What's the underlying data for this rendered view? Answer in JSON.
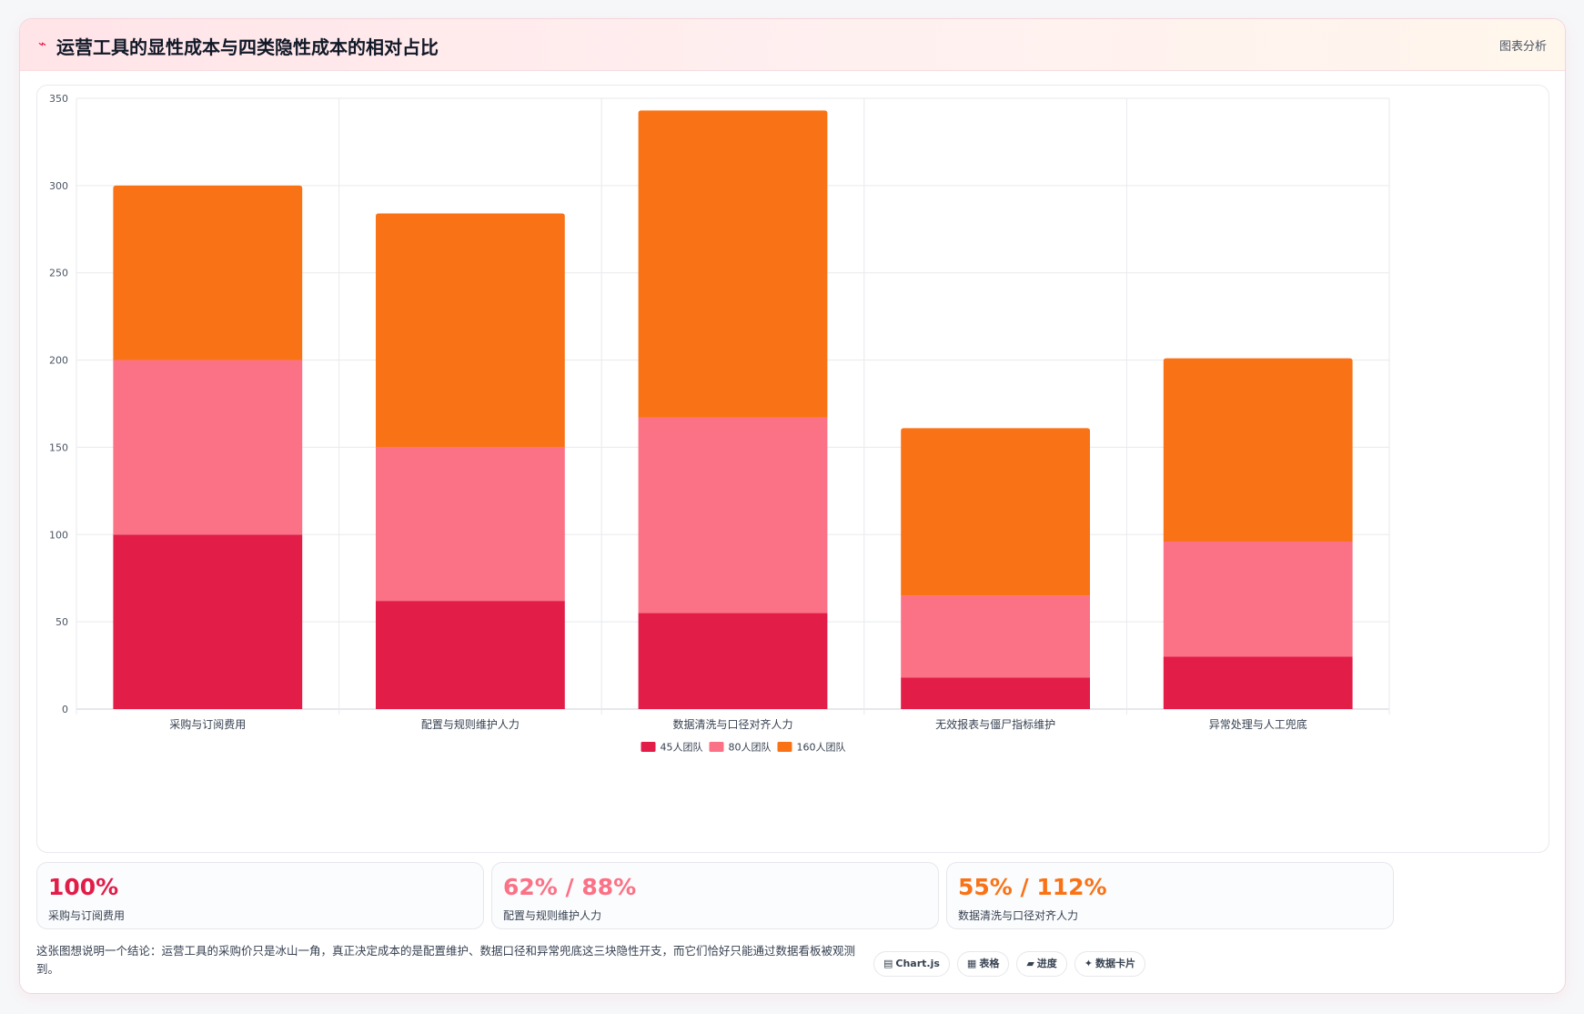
{
  "header": {
    "icon": "trend-line-icon",
    "title": "运营工具的显性成本与四类隐性成本的相对占比",
    "action_label": "图表分析"
  },
  "colors": {
    "series_45": "#e11d48",
    "series_80": "#fb7185",
    "series_160": "#f97316"
  },
  "chart_data": {
    "type": "bar",
    "stacked": true,
    "categories": [
      "采购与订阅费用",
      "配置与规则维护人力",
      "数据清洗与口径对齐人力",
      "无效报表与僵尸指标维护",
      "异常处理与人工兜底"
    ],
    "series": [
      {
        "name": "45人团队",
        "color": "#e11d48",
        "values": [
          100,
          62,
          55,
          18,
          30
        ]
      },
      {
        "name": "80人团队",
        "color": "#fb7185",
        "values": [
          100,
          88,
          112,
          47,
          66
        ]
      },
      {
        "name": "160人团队",
        "color": "#f97316",
        "values": [
          100,
          134,
          176,
          96,
          105
        ]
      }
    ],
    "ylim": [
      0,
      350
    ],
    "yticks": [
      0,
      50,
      100,
      150,
      200,
      250,
      300,
      350
    ],
    "grid": true,
    "legend": "bottom"
  },
  "stats": [
    {
      "value": "100%",
      "label": "采购与订阅费用",
      "color": "#e11d48"
    },
    {
      "value": "62% / 88%",
      "label": "配置与规则维护人力",
      "color": "#fb7185"
    },
    {
      "value": "55% / 112%",
      "label": "数据清洗与口径对齐人力",
      "color": "#f97316"
    }
  ],
  "conclusion": "这张图想说明一个结论：运营工具的采购价只是冰山一角，真正决定成本的是配置维护、数据口径和异常兜底这三块隐性开支，而它们恰好只能通过数据看板被观测到。",
  "chips": [
    {
      "icon": "▤",
      "label": "Chart.js"
    },
    {
      "icon": "▦",
      "label": "表格"
    },
    {
      "icon": "▰",
      "label": "进度"
    },
    {
      "icon": "✦",
      "label": "数据卡片"
    }
  ]
}
